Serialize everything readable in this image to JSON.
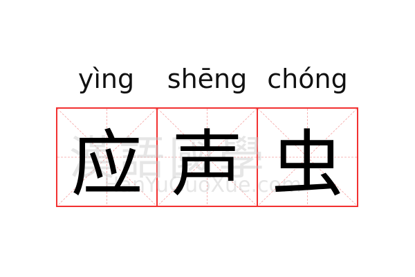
{
  "entry": {
    "pinyin": [
      "yìng",
      "shēng",
      "chóng"
    ],
    "characters": [
      "应",
      "声",
      "虫"
    ]
  },
  "watermark": {
    "chinese": "漢語國學",
    "latin": "HanYuGuoXue.com"
  },
  "colors": {
    "grid_border": "#f23030",
    "guide_lines": "#f5a0a0",
    "text": "#000000"
  }
}
